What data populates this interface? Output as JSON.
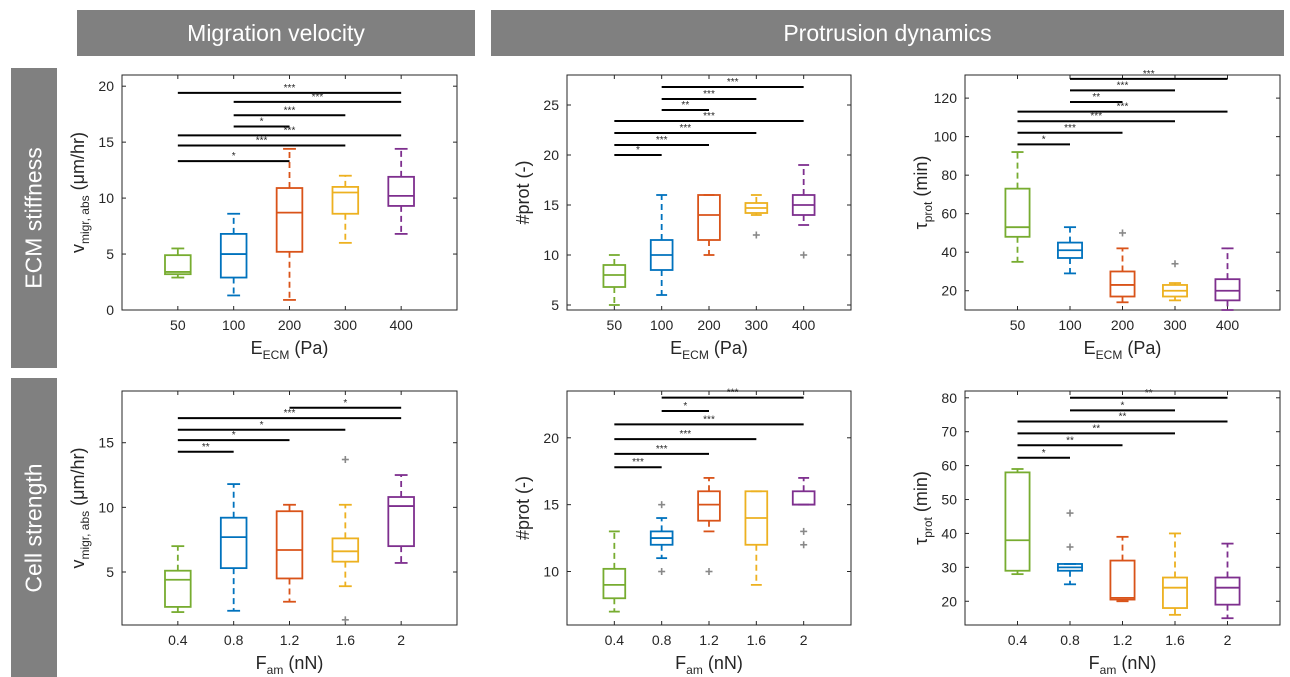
{
  "headers": {
    "migration": "Migration velocity",
    "protrusion": "Protrusion dynamics"
  },
  "rows": {
    "top": "ECM stiffness",
    "bottom": "Cell strength"
  },
  "colors": [
    "#77AC30",
    "#0072BD",
    "#D95319",
    "#EDB120",
    "#7E2F8E"
  ],
  "chart_data": [
    {
      "type": "box",
      "categories": [
        "50",
        "100",
        "200",
        "300",
        "400"
      ],
      "ylim": [
        0,
        21
      ],
      "yticks": [
        0,
        5,
        10,
        15,
        20
      ],
      "ylabel": {
        "main": "v",
        "sub": "migr, abs",
        "unit": " (μm/hr)"
      },
      "xlabel": {
        "main": "E",
        "sub": "ECM",
        "unit": " (Pa)"
      },
      "boxes": [
        {
          "wlo": 2.9,
          "q1": 3.2,
          "med": 3.4,
          "q3": 4.9,
          "whi": 5.5,
          "out": []
        },
        {
          "wlo": 1.3,
          "q1": 2.9,
          "med": 5.0,
          "q3": 6.8,
          "whi": 8.6,
          "out": []
        },
        {
          "wlo": 0.9,
          "q1": 5.2,
          "med": 8.7,
          "q3": 10.9,
          "whi": 14.4,
          "out": []
        },
        {
          "wlo": 6.0,
          "q1": 8.6,
          "med": 10.5,
          "q3": 11.0,
          "whi": 12.0,
          "out": []
        },
        {
          "wlo": 6.8,
          "q1": 9.3,
          "med": 10.2,
          "q3": 11.9,
          "whi": 14.4,
          "out": []
        }
      ],
      "sig": [
        {
          "from": 0,
          "to": 4,
          "y": 19.4,
          "label": "***"
        },
        {
          "from": 1,
          "to": 4,
          "y": 18.6,
          "label": "***"
        },
        {
          "from": 1,
          "to": 3,
          "y": 17.4,
          "label": "***"
        },
        {
          "from": 1,
          "to": 2,
          "y": 16.4,
          "label": "*"
        },
        {
          "from": 0,
          "to": 4,
          "y": 15.6,
          "label": "***"
        },
        {
          "from": 0,
          "to": 3,
          "y": 14.7,
          "label": "***"
        },
        {
          "from": 0,
          "to": 2,
          "y": 13.3,
          "label": "*"
        }
      ]
    },
    {
      "type": "box",
      "categories": [
        "50",
        "100",
        "200",
        "300",
        "400"
      ],
      "ylim": [
        4.5,
        28
      ],
      "yticks": [
        5,
        10,
        15,
        20,
        25
      ],
      "ylabel": {
        "main": "#prot (-)",
        "sub": "",
        "unit": ""
      },
      "xlabel": {
        "main": "E",
        "sub": "ECM",
        "unit": " (Pa)"
      },
      "boxes": [
        {
          "wlo": 5,
          "q1": 6.8,
          "med": 8,
          "q3": 9,
          "whi": 10,
          "out": []
        },
        {
          "wlo": 6,
          "q1": 8.5,
          "med": 10,
          "q3": 11.5,
          "whi": 16,
          "out": []
        },
        {
          "wlo": 10,
          "q1": 11.5,
          "med": 14,
          "q3": 16,
          "whi": 16,
          "out": []
        },
        {
          "wlo": 14,
          "q1": 14.2,
          "med": 14.7,
          "q3": 15.2,
          "whi": 16,
          "out": [
            12
          ]
        },
        {
          "wlo": 13,
          "q1": 14,
          "med": 15,
          "q3": 16,
          "whi": 19,
          "out": [
            10
          ]
        }
      ],
      "sig": [
        {
          "from": 1,
          "to": 4,
          "y": 26.8,
          "label": "***"
        },
        {
          "from": 1,
          "to": 3,
          "y": 25.6,
          "label": "***"
        },
        {
          "from": 1,
          "to": 2,
          "y": 24.5,
          "label": "**"
        },
        {
          "from": 0,
          "to": 4,
          "y": 23.4,
          "label": "***"
        },
        {
          "from": 0,
          "to": 3,
          "y": 22.2,
          "label": "***"
        },
        {
          "from": 0,
          "to": 2,
          "y": 21.0,
          "label": "***"
        },
        {
          "from": 0,
          "to": 1,
          "y": 20.0,
          "label": "*"
        }
      ]
    },
    {
      "type": "box",
      "categories": [
        "50",
        "100",
        "200",
        "300",
        "400"
      ],
      "ylim": [
        10,
        132
      ],
      "yticks": [
        20,
        40,
        60,
        80,
        100,
        120
      ],
      "ylabel": {
        "main": "τ",
        "sub": "prot",
        "unit": " (min)"
      },
      "xlabel": {
        "main": "E",
        "sub": "ECM",
        "unit": " (Pa)"
      },
      "boxes": [
        {
          "wlo": 35,
          "q1": 48,
          "med": 53,
          "q3": 73,
          "whi": 92,
          "out": []
        },
        {
          "wlo": 29,
          "q1": 37,
          "med": 41,
          "q3": 45,
          "whi": 53,
          "out": []
        },
        {
          "wlo": 14,
          "q1": 17,
          "med": 23,
          "q3": 30,
          "whi": 42,
          "out": [
            50
          ]
        },
        {
          "wlo": 15,
          "q1": 17,
          "med": 20,
          "q3": 23,
          "whi": 24,
          "out": [
            34
          ]
        },
        {
          "wlo": 10,
          "q1": 15,
          "med": 20,
          "q3": 26,
          "whi": 42,
          "out": []
        }
      ],
      "sig": [
        {
          "from": 1,
          "to": 4,
          "y": 130,
          "label": "***"
        },
        {
          "from": 1,
          "to": 3,
          "y": 124,
          "label": "***"
        },
        {
          "from": 1,
          "to": 2,
          "y": 118,
          "label": "**"
        },
        {
          "from": 0,
          "to": 4,
          "y": 113,
          "label": "***"
        },
        {
          "from": 0,
          "to": 3,
          "y": 108,
          "label": "***"
        },
        {
          "from": 0,
          "to": 2,
          "y": 102,
          "label": "***"
        },
        {
          "from": 0,
          "to": 1,
          "y": 96,
          "label": "*"
        }
      ]
    },
    {
      "type": "box",
      "categories": [
        "0.4",
        "0.8",
        "1.2",
        "1.6",
        "2"
      ],
      "ylim": [
        0.9,
        19
      ],
      "yticks": [
        5,
        10,
        15
      ],
      "ylabel": {
        "main": "v",
        "sub": "migr, abs",
        "unit": " (μm/hr)"
      },
      "xlabel": {
        "main": "F",
        "sub": "am",
        "unit": " (nN)"
      },
      "boxes": [
        {
          "wlo": 1.9,
          "q1": 2.3,
          "med": 4.4,
          "q3": 5.1,
          "whi": 7.0,
          "out": []
        },
        {
          "wlo": 2.0,
          "q1": 5.3,
          "med": 7.7,
          "q3": 9.2,
          "whi": 11.8,
          "out": []
        },
        {
          "wlo": 2.7,
          "q1": 4.5,
          "med": 6.7,
          "q3": 9.7,
          "whi": 10.2,
          "out": []
        },
        {
          "wlo": 3.9,
          "q1": 5.8,
          "med": 6.6,
          "q3": 7.6,
          "whi": 10.2,
          "out": [
            1.3,
            13.7
          ]
        },
        {
          "wlo": 5.7,
          "q1": 7.0,
          "med": 10.1,
          "q3": 10.8,
          "whi": 12.5,
          "out": []
        }
      ],
      "sig": [
        {
          "from": 2,
          "to": 4,
          "y": 17.7,
          "label": "*"
        },
        {
          "from": 0,
          "to": 4,
          "y": 16.9,
          "label": "***"
        },
        {
          "from": 0,
          "to": 3,
          "y": 16.0,
          "label": "*"
        },
        {
          "from": 0,
          "to": 2,
          "y": 15.2,
          "label": "*"
        },
        {
          "from": 0,
          "to": 1,
          "y": 14.3,
          "label": "**"
        }
      ]
    },
    {
      "type": "box",
      "categories": [
        "0.4",
        "0.8",
        "1.2",
        "1.6",
        "2"
      ],
      "ylim": [
        6,
        23.5
      ],
      "yticks": [
        10,
        15,
        20
      ],
      "ylabel": {
        "main": "#prot (-)",
        "sub": "",
        "unit": ""
      },
      "xlabel": {
        "main": "F",
        "sub": "am",
        "unit": " (nN)"
      },
      "boxes": [
        {
          "wlo": 7,
          "q1": 8,
          "med": 9,
          "q3": 10.2,
          "whi": 13,
          "out": []
        },
        {
          "wlo": 11,
          "q1": 12,
          "med": 12.5,
          "q3": 13,
          "whi": 14,
          "out": [
            10,
            15
          ]
        },
        {
          "wlo": 13,
          "q1": 13.8,
          "med": 15,
          "q3": 16,
          "whi": 17,
          "out": [
            10
          ]
        },
        {
          "wlo": 9,
          "q1": 12,
          "med": 14,
          "q3": 16,
          "whi": 16,
          "out": []
        },
        {
          "wlo": 15,
          "q1": 15,
          "med": 15,
          "q3": 16,
          "whi": 17,
          "out": [
            12,
            13
          ]
        }
      ],
      "sig": [
        {
          "from": 1,
          "to": 4,
          "y": 23.0,
          "label": "***"
        },
        {
          "from": 1,
          "to": 2,
          "y": 22.0,
          "label": "*"
        },
        {
          "from": 0,
          "to": 4,
          "y": 21.0,
          "label": "***"
        },
        {
          "from": 0,
          "to": 3,
          "y": 19.9,
          "label": "***"
        },
        {
          "from": 0,
          "to": 2,
          "y": 18.8,
          "label": "***"
        },
        {
          "from": 0,
          "to": 1,
          "y": 17.8,
          "label": "***"
        }
      ]
    },
    {
      "type": "box",
      "categories": [
        "0.4",
        "0.8",
        "1.2",
        "1.6",
        "2"
      ],
      "ylim": [
        13,
        82
      ],
      "yticks": [
        20,
        30,
        40,
        50,
        60,
        70,
        80
      ],
      "ylabel": {
        "main": "τ",
        "sub": "prot",
        "unit": " (min)"
      },
      "xlabel": {
        "main": "F",
        "sub": "am",
        "unit": " (nN)"
      },
      "boxes": [
        {
          "wlo": 28,
          "q1": 29,
          "med": 38,
          "q3": 58,
          "whi": 59,
          "out": []
        },
        {
          "wlo": 25,
          "q1": 29,
          "med": 30,
          "q3": 31,
          "whi": 31,
          "out": [
            36,
            46
          ]
        },
        {
          "wlo": 20,
          "q1": 20.5,
          "med": 21,
          "q3": 32,
          "whi": 39,
          "out": []
        },
        {
          "wlo": 16,
          "q1": 18,
          "med": 24,
          "q3": 27,
          "whi": 40,
          "out": []
        },
        {
          "wlo": 15,
          "q1": 19,
          "med": 24,
          "q3": 27,
          "whi": 37,
          "out": []
        }
      ],
      "sig": [
        {
          "from": 1,
          "to": 4,
          "y": 80.0,
          "label": "**"
        },
        {
          "from": 1,
          "to": 3,
          "y": 76.3,
          "label": "*"
        },
        {
          "from": 0,
          "to": 4,
          "y": 73.0,
          "label": "**"
        },
        {
          "from": 0,
          "to": 3,
          "y": 69.5,
          "label": "**"
        },
        {
          "from": 0,
          "to": 2,
          "y": 66.0,
          "label": "**"
        },
        {
          "from": 0,
          "to": 1,
          "y": 62.3,
          "label": "*"
        }
      ]
    }
  ]
}
